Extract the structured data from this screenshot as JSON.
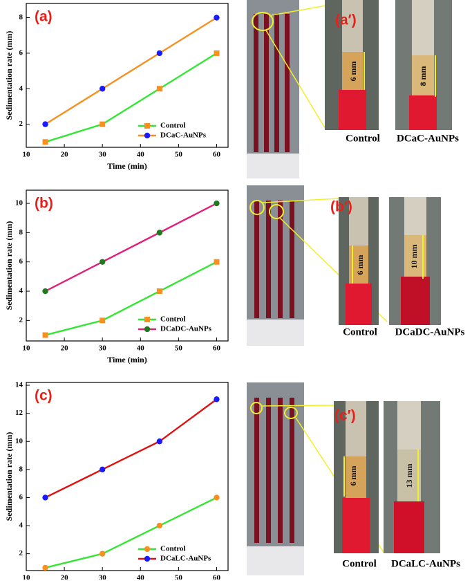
{
  "chart_data": [
    {
      "type": "line",
      "panel_label": "(a)",
      "xlabel": "Time (min)",
      "ylabel": "Sedimentation rate (mm)",
      "x": [
        15,
        30,
        45,
        60
      ],
      "series": [
        {
          "name": "Control",
          "color": "#33e633",
          "marker_color": "#f7901e",
          "marker": "square",
          "values": [
            1,
            2,
            4,
            6
          ]
        },
        {
          "name": "DCaC-AuNPs",
          "color": "#f7901e",
          "marker_color": "#1a1aff",
          "marker": "circle",
          "values": [
            2,
            4,
            6,
            8
          ]
        }
      ],
      "xlim": [
        10,
        63
      ],
      "xticks": [
        10,
        20,
        30,
        40,
        50,
        60
      ],
      "ylim": [
        0.7,
        8.8
      ],
      "yticks": [
        2,
        4,
        6,
        8
      ],
      "legend": "lower right"
    },
    {
      "type": "line",
      "panel_label": "(b)",
      "xlabel": "Time (min)",
      "ylabel": "Sedimentation rate (mm)",
      "x": [
        15,
        30,
        45,
        60
      ],
      "series": [
        {
          "name": "Control",
          "color": "#33e633",
          "marker_color": "#f7901e",
          "marker": "square",
          "values": [
            1,
            2,
            4,
            6
          ]
        },
        {
          "name": "DCaDC-AuNPs",
          "color": "#e0207a",
          "marker_color": "#1f7a1f",
          "marker": "circle",
          "values": [
            4,
            6,
            8,
            10
          ]
        }
      ],
      "xlim": [
        10,
        63
      ],
      "xticks": [
        10,
        20,
        30,
        40,
        50,
        60
      ],
      "ylim": [
        0.6,
        10.9
      ],
      "yticks": [
        2,
        4,
        6,
        8,
        10
      ],
      "legend": "lower right"
    },
    {
      "type": "line",
      "panel_label": "(c)",
      "xlabel": "Time (min)",
      "ylabel": "Sedimentation rate (mm)",
      "x": [
        15,
        30,
        45,
        60
      ],
      "series": [
        {
          "name": "Control",
          "color": "#33e633",
          "marker_color": "#f7901e",
          "marker": "circle",
          "values": [
            1,
            2,
            4,
            6
          ]
        },
        {
          "name": "DCaLC-AuNPs",
          "color": "#e01010",
          "marker_color": "#1a1aff",
          "marker": "circle",
          "values": [
            6,
            8,
            10,
            13
          ]
        }
      ],
      "xlim": [
        10,
        63
      ],
      "xticks": [
        10,
        20,
        30,
        40,
        50,
        60
      ],
      "ylim": [
        0.8,
        14.2
      ],
      "yticks": [
        2,
        4,
        6,
        8,
        10,
        12,
        14
      ],
      "legend": "lower right"
    }
  ],
  "photos": [
    {
      "label": "(a′)",
      "captions": [
        "Control",
        "DCaC-AuNPs"
      ],
      "measures": [
        "6 mm",
        "8 mm"
      ]
    },
    {
      "label": "(b′)",
      "captions": [
        "Control",
        "DCaDC-AuNPs"
      ],
      "measures": [
        "6 mm",
        "10 mm"
      ]
    },
    {
      "label": "(c′)",
      "captions": [
        "Control",
        "DCaLC-AuNPs"
      ],
      "measures": [
        "6 mm",
        "13 mm"
      ]
    }
  ]
}
